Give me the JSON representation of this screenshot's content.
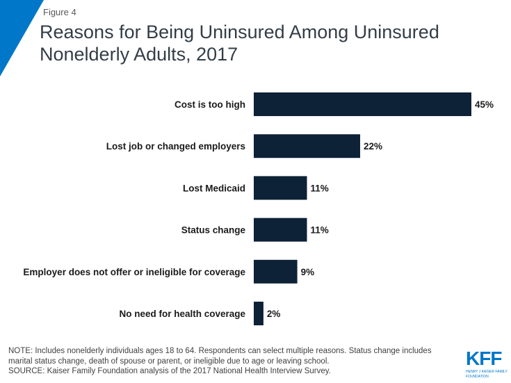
{
  "header": {
    "figure_label": "Figure 4",
    "title": "Reasons for Being Uninsured Among Uninsured Nonelderly Adults, 2017"
  },
  "chart_data": {
    "type": "bar",
    "orientation": "horizontal",
    "categories": [
      "Cost is too high",
      "Lost job or changed employers",
      "Lost Medicaid",
      "Status change",
      "Employer does not offer or ineligible for coverage",
      "No need for health coverage"
    ],
    "values": [
      45,
      22,
      11,
      11,
      9,
      2
    ],
    "data_labels": [
      "45%",
      "22%",
      "11%",
      "11%",
      "9%",
      "2%"
    ],
    "xlim": [
      0,
      45
    ],
    "grid": false,
    "bar_color": "#0d2137"
  },
  "footer": {
    "note": "NOTE: Includes nonelderly individuals ages 18 to 64. Respondents can select multiple reasons. Status change includes marital status change, death of spouse or parent, or ineligible due to age or leaving school.",
    "source": "SOURCE: Kaiser Family Foundation analysis of the 2017 National Health Interview Survey."
  },
  "logo": {
    "text": "KFF",
    "subtext": "HENRY J KAISER FAMILY FOUNDATION",
    "color": "#0077c8"
  },
  "accent_color": "#0077c8"
}
